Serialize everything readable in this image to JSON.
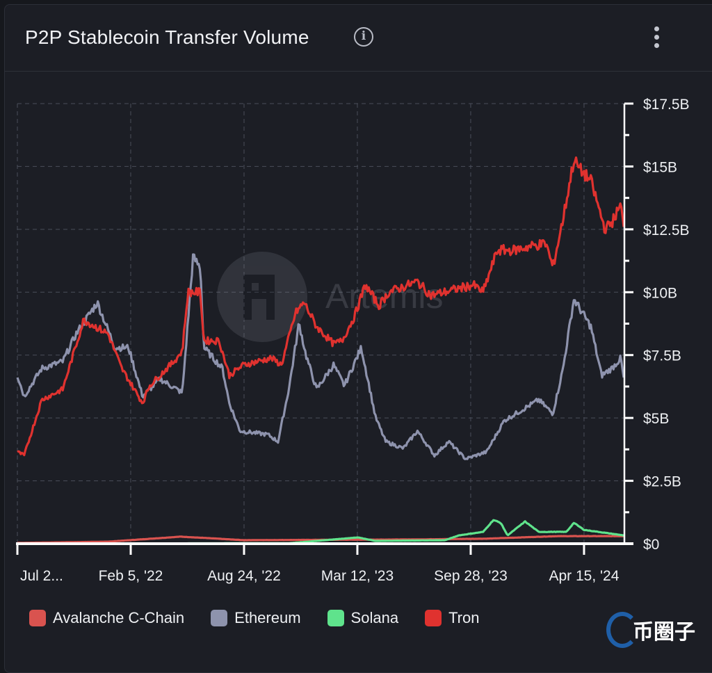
{
  "header": {
    "title": "P2P Stablecoin Transfer Volume",
    "info_icon": "info-icon",
    "menu_icon": "more-vertical-icon"
  },
  "watermark": {
    "chart_logo_text": "Artemis",
    "corner_logo_text": "币圈子"
  },
  "chart_data": {
    "type": "line",
    "title": "P2P Stablecoin Transfer Volume",
    "xlabel": "",
    "ylabel": "",
    "x_unit": "days since Jul 20, 2021",
    "xlim": [
      0,
      1070
    ],
    "ylim": [
      0,
      17.5
    ],
    "grid": true,
    "legend_position": "bottom-left",
    "x_ticks": [
      {
        "day": 0,
        "label": "Jul 2..."
      },
      {
        "day": 200,
        "label": "Feb 5, '22"
      },
      {
        "day": 400,
        "label": "Aug 24, '22"
      },
      {
        "day": 600,
        "label": "Mar 12, '23"
      },
      {
        "day": 800,
        "label": "Sep 28, '23"
      },
      {
        "day": 1000,
        "label": "Apr 15, '24"
      }
    ],
    "y_ticks": [
      {
        "value": 0,
        "label": "$0"
      },
      {
        "value": 2.5,
        "label": "$2.5B"
      },
      {
        "value": 5,
        "label": "$5B"
      },
      {
        "value": 7.5,
        "label": "$7.5B"
      },
      {
        "value": 10,
        "label": "$10B"
      },
      {
        "value": 12.5,
        "label": "$12.5B"
      },
      {
        "value": 15,
        "label": "$15B"
      },
      {
        "value": 17.5,
        "label": "$17.5B"
      }
    ],
    "series": [
      {
        "name": "Avalanche C-Chain",
        "color": "#d9534f",
        "points": [
          [
            0,
            0.03
          ],
          [
            160,
            0.08
          ],
          [
            288,
            0.28
          ],
          [
            337,
            0.22
          ],
          [
            399,
            0.14
          ],
          [
            706,
            0.17
          ],
          [
            828,
            0.2
          ],
          [
            951,
            0.3
          ],
          [
            1070,
            0.3
          ]
        ]
      },
      {
        "name": "Ethereum",
        "color": "#8e93ad",
        "points": [
          [
            0,
            6.69
          ],
          [
            12,
            5.86
          ],
          [
            43,
            6.97
          ],
          [
            80,
            7.24
          ],
          [
            104,
            8.35
          ],
          [
            141,
            9.59
          ],
          [
            172,
            7.8
          ],
          [
            196,
            7.8
          ],
          [
            221,
            5.86
          ],
          [
            252,
            6.55
          ],
          [
            291,
            6.0
          ],
          [
            310,
            11.39
          ],
          [
            323,
            10.98
          ],
          [
            329,
            7.8
          ],
          [
            362,
            6.97
          ],
          [
            374,
            5.59
          ],
          [
            393,
            4.48
          ],
          [
            442,
            4.34
          ],
          [
            460,
            4.06
          ],
          [
            479,
            6.14
          ],
          [
            497,
            8.77
          ],
          [
            509,
            7.52
          ],
          [
            528,
            6.14
          ],
          [
            558,
            7.11
          ],
          [
            577,
            6.28
          ],
          [
            607,
            7.8
          ],
          [
            632,
            5.03
          ],
          [
            650,
            4.06
          ],
          [
            681,
            3.79
          ],
          [
            706,
            4.48
          ],
          [
            736,
            3.51
          ],
          [
            761,
            4.06
          ],
          [
            791,
            3.37
          ],
          [
            828,
            3.65
          ],
          [
            859,
            4.89
          ],
          [
            890,
            5.31
          ],
          [
            920,
            5.72
          ],
          [
            945,
            5.17
          ],
          [
            963,
            6.97
          ],
          [
            982,
            9.73
          ],
          [
            1012,
            8.63
          ],
          [
            1031,
            6.69
          ],
          [
            1049,
            6.97
          ],
          [
            1065,
            7.38
          ],
          [
            1070,
            6.55
          ]
        ]
      },
      {
        "name": "Solana",
        "color": "#5fe38c",
        "points": [
          [
            0,
            0
          ],
          [
            480,
            0.02
          ],
          [
            601,
            0.25
          ],
          [
            632,
            0.11
          ],
          [
            755,
            0.14
          ],
          [
            779,
            0.33
          ],
          [
            822,
            0.47
          ],
          [
            840,
            0.94
          ],
          [
            853,
            0.83
          ],
          [
            865,
            0.33
          ],
          [
            896,
            0.88
          ],
          [
            920,
            0.47
          ],
          [
            969,
            0.47
          ],
          [
            982,
            0.83
          ],
          [
            1000,
            0.55
          ],
          [
            1070,
            0.33
          ]
        ]
      },
      {
        "name": "Tron",
        "color": "#e0322f",
        "points": [
          [
            0,
            3.65
          ],
          [
            12,
            3.51
          ],
          [
            43,
            5.72
          ],
          [
            80,
            6.14
          ],
          [
            117,
            8.9
          ],
          [
            160,
            8.35
          ],
          [
            184,
            6.97
          ],
          [
            221,
            5.59
          ],
          [
            233,
            6.28
          ],
          [
            276,
            7.24
          ],
          [
            291,
            7.66
          ],
          [
            301,
            10.0
          ],
          [
            323,
            10.0
          ],
          [
            329,
            8.07
          ],
          [
            356,
            8.07
          ],
          [
            374,
            6.69
          ],
          [
            399,
            7.11
          ],
          [
            448,
            7.38
          ],
          [
            466,
            7.11
          ],
          [
            491,
            9.18
          ],
          [
            506,
            9.59
          ],
          [
            528,
            8.63
          ],
          [
            558,
            7.94
          ],
          [
            573,
            8.07
          ],
          [
            595,
            9.04
          ],
          [
            614,
            10.29
          ],
          [
            638,
            9.46
          ],
          [
            656,
            10.01
          ],
          [
            706,
            10.42
          ],
          [
            730,
            9.87
          ],
          [
            804,
            10.29
          ],
          [
            822,
            10.01
          ],
          [
            847,
            11.67
          ],
          [
            877,
            11.67
          ],
          [
            902,
            11.81
          ],
          [
            933,
            11.94
          ],
          [
            945,
            10.98
          ],
          [
            963,
            12.91
          ],
          [
            982,
            15.26
          ],
          [
            994,
            14.85
          ],
          [
            1012,
            14.43
          ],
          [
            1037,
            12.5
          ],
          [
            1049,
            12.77
          ],
          [
            1065,
            13.47
          ],
          [
            1070,
            12.5
          ]
        ]
      }
    ]
  }
}
